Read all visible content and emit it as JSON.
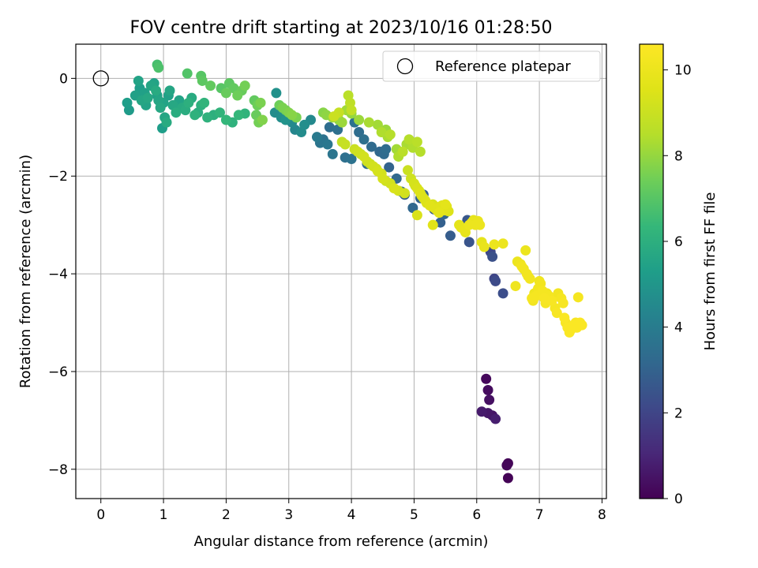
{
  "chart_data": {
    "type": "scatter",
    "title": "FOV centre drift starting at 2023/10/16 01:28:50",
    "xlabel": "Angular distance from reference (arcmin)",
    "ylabel": "Rotation from reference (arcmin)",
    "xlim": [
      -0.4,
      8.07
    ],
    "ylim": [
      -8.6,
      0.7
    ],
    "x_ticks": [
      0,
      1,
      2,
      3,
      4,
      5,
      6,
      7,
      8
    ],
    "x_tick_labels": [
      "0",
      "1",
      "2",
      "3",
      "4",
      "5",
      "6",
      "7",
      "8"
    ],
    "y_ticks": [
      0,
      -2,
      -4,
      -6,
      -8
    ],
    "y_tick_labels": [
      "0",
      "−2",
      "−4",
      "−6",
      "−8"
    ],
    "grid": true,
    "legend": {
      "placement": "top-right",
      "entries": [
        "Reference platepar"
      ]
    },
    "reference_point": {
      "x": 0,
      "y": 0
    },
    "colorbar": {
      "label": "Hours from first FF file",
      "range": [
        0,
        10.6
      ],
      "ticks": [
        0,
        2,
        4,
        6,
        8,
        10
      ],
      "tick_labels": [
        "0",
        "2",
        "4",
        "6",
        "8",
        "10"
      ],
      "colormap": "viridis"
    },
    "series": [
      {
        "comment_free": true,
        "x": [
          6.15,
          6.18,
          6.2,
          6.25,
          6.18,
          6.08,
          6.3,
          6.5,
          6.48,
          6.5
        ],
        "y": [
          -6.15,
          -6.38,
          -6.58,
          -6.9,
          -6.85,
          -6.82,
          -6.97,
          -7.88,
          -7.92,
          -8.18
        ],
        "c": [
          0.2,
          0.3,
          0.4,
          0.5,
          0.6,
          0.7,
          0.8,
          0.1,
          0.15,
          0.05
        ]
      },
      {
        "x": [
          6.22,
          6.28,
          6.3,
          6.42,
          6.25,
          5.88,
          5.85,
          5.58,
          5.42,
          5.42,
          5.48,
          5.32,
          4.98,
          5.1,
          5.15,
          4.85,
          4.8,
          4.72,
          4.6,
          4.52,
          4.55,
          4.45,
          4.32,
          4.2,
          4.12,
          4.0,
          3.9,
          3.7,
          3.62,
          3.55,
          3.45,
          3.5,
          3.65,
          3.78,
          4.05,
          4.25
        ],
        "y": [
          -3.55,
          -4.1,
          -4.15,
          -4.4,
          -3.65,
          -3.35,
          -2.9,
          -3.22,
          -2.95,
          -2.75,
          -2.78,
          -2.68,
          -2.65,
          -2.45,
          -2.38,
          -2.38,
          -2.32,
          -2.05,
          -1.82,
          -1.55,
          -1.45,
          -1.5,
          -1.4,
          -1.25,
          -1.1,
          -1.65,
          -1.62,
          -1.55,
          -1.35,
          -1.25,
          -1.2,
          -1.32,
          -1.0,
          -1.05,
          -0.9,
          -1.75
        ],
        "c": [
          2.1,
          2.0,
          2.2,
          2.3,
          2.4,
          2.5,
          2.6,
          2.8,
          2.9,
          3.0,
          3.1,
          2.7,
          3.2,
          3.0,
          2.9,
          2.8,
          3.1,
          3.2,
          3.0,
          3.3,
          3.4,
          3.2,
          3.3,
          3.5,
          3.4,
          3.6,
          3.5,
          3.7,
          3.8,
          3.6,
          3.9,
          3.7,
          3.4,
          3.5,
          3.6,
          3.3
        ]
      },
      {
        "x": [
          2.8,
          2.78,
          2.88,
          2.95,
          3.05,
          3.1,
          3.2,
          3.25,
          3.35,
          0.42,
          0.45,
          0.55,
          0.6,
          0.62,
          0.65,
          0.7,
          0.72,
          0.75,
          0.8,
          0.85,
          0.88,
          0.9,
          0.92,
          0.95,
          0.98,
          1.0,
          1.02,
          1.05,
          1.08,
          1.1,
          1.15,
          1.2,
          1.25,
          1.3,
          1.35,
          1.4,
          1.45,
          1.5,
          1.55,
          1.6,
          1.65,
          1.7,
          1.8,
          1.9,
          2.0,
          2.1,
          2.2,
          2.3
        ],
        "y": [
          -0.3,
          -0.7,
          -0.8,
          -0.85,
          -0.9,
          -1.05,
          -1.1,
          -0.95,
          -0.85,
          -0.5,
          -0.65,
          -0.35,
          -0.05,
          -0.2,
          -0.45,
          -0.3,
          -0.55,
          -0.4,
          -0.15,
          -0.1,
          -0.25,
          -0.35,
          -0.45,
          -0.6,
          -1.02,
          -0.5,
          -0.8,
          -0.9,
          -0.35,
          -0.25,
          -0.55,
          -0.7,
          -0.45,
          -0.6,
          -0.65,
          -0.5,
          -0.4,
          -0.75,
          -0.7,
          -0.55,
          -0.5,
          -0.8,
          -0.75,
          -0.7,
          -0.85,
          -0.9,
          -0.75,
          -0.72
        ],
        "c": [
          4.8,
          4.6,
          4.7,
          4.9,
          4.5,
          4.4,
          4.6,
          4.7,
          4.5,
          5.3,
          5.2,
          5.4,
          5.5,
          5.3,
          5.6,
          5.4,
          5.5,
          5.7,
          5.6,
          5.5,
          5.8,
          5.4,
          5.6,
          5.7,
          5.3,
          5.5,
          5.6,
          5.8,
          5.4,
          5.6,
          5.7,
          5.9,
          5.5,
          5.8,
          5.9,
          6.0,
          5.8,
          6.1,
          5.9,
          6.0,
          6.2,
          6.1,
          6.0,
          6.2,
          6.3,
          6.1,
          6.3,
          6.2
        ]
      },
      {
        "x": [
          0.9,
          0.92,
          1.38,
          1.6,
          1.62,
          1.75,
          1.92,
          2.0,
          2.05,
          2.12,
          2.18,
          2.25,
          2.3,
          2.45,
          2.5,
          2.55,
          2.48,
          2.52,
          2.58,
          2.85,
          2.9,
          2.95,
          3.0,
          3.05,
          3.12,
          3.55,
          3.6,
          3.7,
          3.8,
          3.85,
          3.92,
          4.0,
          4.12,
          4.28,
          4.42,
          4.48,
          4.55,
          4.58,
          4.62,
          4.72,
          4.75,
          4.82,
          4.88,
          4.92,
          4.98,
          5.05,
          5.1
        ],
        "y": [
          0.28,
          0.22,
          0.1,
          0.05,
          -0.05,
          -0.15,
          -0.2,
          -0.3,
          -0.1,
          -0.2,
          -0.35,
          -0.25,
          -0.15,
          -0.45,
          -0.55,
          -0.5,
          -0.75,
          -0.9,
          -0.85,
          -0.55,
          -0.6,
          -0.65,
          -0.7,
          -0.75,
          -0.8,
          -0.7,
          -0.75,
          -0.8,
          -0.85,
          -0.9,
          -0.65,
          -0.72,
          -0.85,
          -0.9,
          -0.95,
          -1.1,
          -1.05,
          -1.2,
          -1.15,
          -1.45,
          -1.6,
          -1.5,
          -1.35,
          -1.25,
          -1.42,
          -1.3,
          -1.5
        ],
        "c": [
          6.7,
          6.8,
          6.9,
          7.0,
          7.1,
          7.2,
          7.0,
          7.3,
          7.1,
          7.2,
          7.4,
          7.3,
          7.5,
          7.2,
          7.4,
          7.6,
          7.3,
          7.5,
          7.7,
          7.4,
          7.6,
          7.5,
          7.7,
          7.8,
          7.6,
          7.8,
          7.9,
          8.0,
          7.9,
          8.1,
          8.2,
          8.0,
          8.1,
          8.3,
          8.2,
          8.4,
          8.1,
          8.3,
          8.5,
          8.2,
          8.4,
          8.6,
          8.3,
          8.5,
          8.4,
          8.6,
          8.5
        ]
      },
      {
        "x": [
          3.95,
          3.98,
          4.0,
          3.8,
          3.72,
          3.85,
          3.9,
          4.05,
          4.1,
          4.15,
          4.2,
          4.25,
          4.3,
          4.35,
          4.4,
          4.42,
          4.48,
          4.5,
          4.55,
          4.62,
          4.68,
          4.75,
          4.85,
          4.9,
          4.95,
          5.0,
          5.02,
          5.05,
          5.08,
          5.1,
          5.12,
          5.15,
          5.18,
          5.2,
          5.25,
          5.28,
          5.3,
          5.32,
          5.35,
          5.38,
          5.4,
          5.42,
          5.45,
          5.48,
          5.5,
          5.52,
          5.55,
          5.05,
          5.3
        ],
        "y": [
          -0.35,
          -0.5,
          -0.65,
          -0.7,
          -0.78,
          -1.3,
          -1.35,
          -1.45,
          -1.5,
          -1.55,
          -1.6,
          -1.7,
          -1.75,
          -1.8,
          -1.85,
          -1.9,
          -1.95,
          -2.05,
          -2.1,
          -2.15,
          -2.25,
          -2.3,
          -2.35,
          -1.88,
          -2.05,
          -2.15,
          -2.2,
          -2.25,
          -2.3,
          -2.35,
          -2.4,
          -2.45,
          -2.5,
          -2.55,
          -2.6,
          -2.62,
          -2.58,
          -2.65,
          -2.68,
          -2.72,
          -2.75,
          -2.62,
          -2.6,
          -2.7,
          -2.58,
          -2.62,
          -2.72,
          -2.8,
          -3.0
        ],
        "c": [
          8.6,
          8.7,
          8.8,
          8.9,
          9.0,
          8.8,
          8.9,
          9.0,
          9.1,
          9.0,
          9.2,
          9.1,
          9.0,
          9.2,
          9.1,
          9.3,
          9.2,
          9.3,
          9.1,
          9.2,
          9.4,
          9.3,
          9.2,
          9.0,
          9.1,
          9.3,
          9.2,
          9.4,
          9.3,
          9.5,
          9.4,
          9.3,
          9.5,
          9.4,
          9.6,
          9.5,
          9.4,
          9.5,
          9.6,
          9.5,
          9.7,
          9.6,
          9.5,
          9.6,
          9.7,
          9.6,
          9.5,
          9.4,
          9.6
        ]
      },
      {
        "x": [
          5.72,
          5.75,
          5.8,
          5.82,
          5.88,
          5.92,
          5.95,
          5.98,
          6.02,
          6.05,
          6.08,
          6.12,
          6.28,
          6.42,
          6.62,
          6.65,
          6.7,
          6.72,
          6.75,
          6.78,
          6.8,
          6.82,
          6.85,
          6.88,
          6.9,
          6.92,
          6.95,
          6.98,
          7.0,
          7.02,
          7.05,
          7.08,
          7.1,
          7.12,
          7.15,
          7.2,
          7.25,
          7.28,
          7.3,
          7.35,
          7.38,
          7.4,
          7.42,
          7.45,
          7.48,
          7.5,
          7.55,
          7.58,
          7.6,
          7.62,
          7.65,
          7.68
        ],
        "y": [
          -3.0,
          -3.05,
          -3.1,
          -3.15,
          -3.0,
          -2.95,
          -2.9,
          -3.0,
          -2.92,
          -3.0,
          -3.35,
          -3.45,
          -3.4,
          -3.38,
          -4.25,
          -3.75,
          -3.8,
          -3.85,
          -3.9,
          -3.52,
          -4.0,
          -4.05,
          -4.1,
          -4.5,
          -4.55,
          -4.4,
          -4.45,
          -4.3,
          -4.15,
          -4.2,
          -4.35,
          -4.5,
          -4.6,
          -4.4,
          -4.45,
          -4.55,
          -4.7,
          -4.8,
          -4.4,
          -4.5,
          -4.6,
          -4.9,
          -5.0,
          -5.1,
          -5.2,
          -5.15,
          -5.05,
          -5.0,
          -5.1,
          -4.48,
          -5.0,
          -5.05
        ],
        "c": [
          9.7,
          9.8,
          9.9,
          9.8,
          10.0,
          9.9,
          9.8,
          10.0,
          9.9,
          10.0,
          9.8,
          9.9,
          10.0,
          10.0,
          10.1,
          10.0,
          10.1,
          10.2,
          10.1,
          10.0,
          10.2,
          10.1,
          10.2,
          10.3,
          10.2,
          10.1,
          10.3,
          10.2,
          10.1,
          10.2,
          10.3,
          10.4,
          10.3,
          10.2,
          10.3,
          10.4,
          10.3,
          10.4,
          10.2,
          10.3,
          10.4,
          10.5,
          10.4,
          10.5,
          10.5,
          10.4,
          10.5,
          10.4,
          10.5,
          10.3,
          10.5,
          10.5
        ]
      }
    ]
  }
}
